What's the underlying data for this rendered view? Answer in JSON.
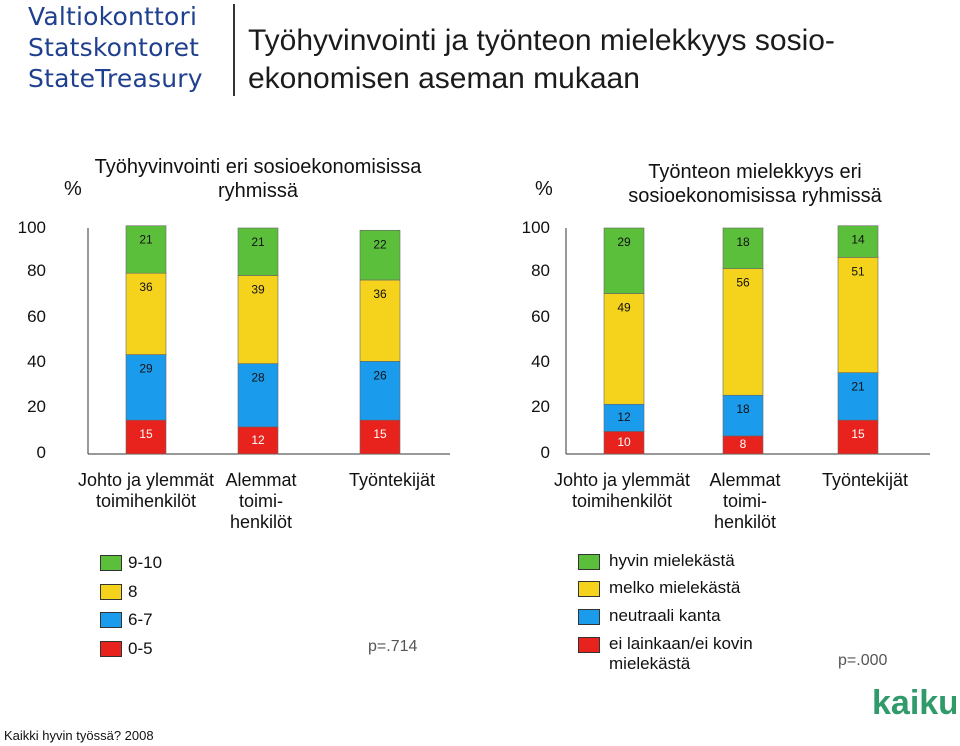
{
  "logo": [
    "Valtiokonttori",
    "Statskontoret",
    "StateTreasury"
  ],
  "title": "Työhyvinvointi ja työnteon mielekkyys sosio-ekonomisen aseman mukaan",
  "brand": "kaiku",
  "source": "Kaikki hyvin työssä? 2008",
  "colors": {
    "red": "#e8231d",
    "blue": "#1a9bec",
    "yellow": "#f5d31d",
    "green": "#5cbf3c"
  },
  "left_legend": [
    "9-10",
    "8",
    "6-7",
    "0-5"
  ],
  "right_legend": [
    "hyvin mielekästä",
    "melko mielekästä",
    "neutraali kanta",
    "ei lainkaan/ei kovin mielekästä"
  ],
  "chart_data": [
    {
      "type": "bar",
      "stacked": true,
      "title": "Työhyvinvointi eri sosioekonomisissa ryhmissä",
      "ylabel": "%",
      "ylim": [
        0,
        100
      ],
      "yticks": [
        "0",
        "20",
        "40",
        "60",
        "80",
        "100"
      ],
      "categories": [
        "Johto ja ylemmät toimihenkilöt",
        "Alemmat toimi-henkilöt",
        "Työntekijät"
      ],
      "series": [
        {
          "name": "0-5",
          "color": "red",
          "values": [
            15,
            12,
            15
          ]
        },
        {
          "name": "6-7",
          "color": "blue",
          "values": [
            29,
            28,
            26
          ]
        },
        {
          "name": "8",
          "color": "yellow",
          "values": [
            36,
            39,
            36
          ]
        },
        {
          "name": "9-10",
          "color": "green",
          "values": [
            21,
            21,
            22
          ]
        }
      ],
      "p_value": "p=.714"
    },
    {
      "type": "bar",
      "stacked": true,
      "title": "Työnteon mielekkyys eri sosioekonomisissa ryhmissä",
      "ylabel": "%",
      "ylim": [
        0,
        100
      ],
      "yticks": [
        "0",
        "20",
        "40",
        "60",
        "80",
        "100"
      ],
      "categories": [
        "Johto ja ylemmät toimihenkilöt",
        "Alemmat toimi-henkilöt",
        "Työntekijät"
      ],
      "series": [
        {
          "name": "ei lainkaan/ei kovin mielekästä",
          "color": "red",
          "values": [
            10,
            8,
            15
          ]
        },
        {
          "name": "neutraali kanta",
          "color": "blue",
          "values": [
            12,
            18,
            21
          ]
        },
        {
          "name": "melko mielekästä",
          "color": "yellow",
          "values": [
            49,
            56,
            51
          ]
        },
        {
          "name": "hyvin mielekästä",
          "color": "green",
          "values": [
            29,
            18,
            14
          ]
        }
      ],
      "p_value": "p=.000"
    }
  ]
}
